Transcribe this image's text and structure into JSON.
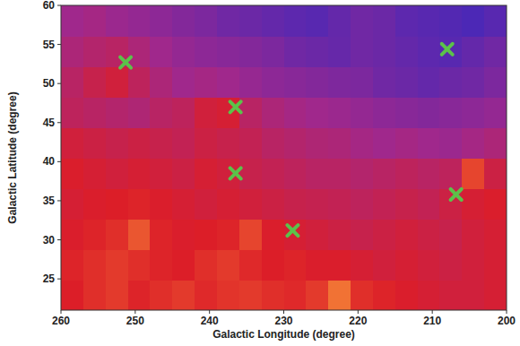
{
  "chart_data": {
    "type": "heatmap",
    "x_label": "Galactic Longitude (degree)",
    "y_label": "Galactic Latitude (degree)",
    "xlim": [
      260,
      200
    ],
    "ylim": [
      21,
      60
    ],
    "xticks": [
      260,
      250,
      240,
      230,
      220,
      210,
      200
    ],
    "yticks": [
      25,
      30,
      35,
      40,
      45,
      50,
      55,
      60
    ],
    "zlim": [
      0,
      1
    ],
    "x": [
      258.5,
      255.5,
      252.5,
      249.5,
      246.5,
      243.5,
      240.5,
      237.5,
      234.5,
      231.5,
      228.5,
      225.5,
      222.5,
      219.5,
      216.5,
      213.5,
      210.5,
      207.5,
      204.5,
      201.5
    ],
    "y": [
      22.95,
      26.85,
      30.75,
      34.65,
      38.55,
      42.45,
      46.35,
      50.25,
      54.15,
      58.05
    ],
    "cells": [
      [
        0.75,
        0.78,
        0.8,
        0.76,
        0.78,
        0.8,
        0.77,
        0.79,
        0.8,
        0.78,
        0.77,
        0.8,
        0.9,
        0.78,
        0.76,
        0.74,
        0.72,
        0.7,
        0.7,
        0.72
      ],
      [
        0.76,
        0.78,
        0.8,
        0.78,
        0.76,
        0.75,
        0.78,
        0.8,
        0.77,
        0.75,
        0.76,
        0.74,
        0.74,
        0.72,
        0.7,
        0.72,
        0.7,
        0.68,
        0.7,
        0.72
      ],
      [
        0.74,
        0.76,
        0.78,
        0.85,
        0.76,
        0.74,
        0.75,
        0.76,
        0.82,
        0.74,
        0.72,
        0.7,
        0.68,
        0.66,
        0.68,
        0.7,
        0.68,
        0.66,
        0.7,
        0.72
      ],
      [
        0.72,
        0.74,
        0.75,
        0.76,
        0.74,
        0.72,
        0.7,
        0.72,
        0.7,
        0.68,
        0.66,
        0.65,
        0.64,
        0.62,
        0.64,
        0.66,
        0.64,
        0.68,
        0.72,
        0.74
      ],
      [
        0.74,
        0.72,
        0.7,
        0.72,
        0.7,
        0.68,
        0.72,
        0.7,
        0.66,
        0.64,
        0.62,
        0.6,
        0.6,
        0.58,
        0.6,
        0.62,
        0.6,
        0.62,
        0.82,
        0.68
      ],
      [
        0.7,
        0.68,
        0.66,
        0.68,
        0.66,
        0.64,
        0.68,
        0.66,
        0.64,
        0.6,
        0.58,
        0.56,
        0.55,
        0.52,
        0.5,
        0.52,
        0.5,
        0.48,
        0.52,
        0.55
      ],
      [
        0.62,
        0.6,
        0.58,
        0.56,
        0.6,
        0.62,
        0.7,
        0.72,
        0.6,
        0.55,
        0.52,
        0.5,
        0.48,
        0.45,
        0.42,
        0.4,
        0.38,
        0.4,
        0.42,
        0.45
      ],
      [
        0.6,
        0.66,
        0.7,
        0.62,
        0.55,
        0.5,
        0.52,
        0.5,
        0.46,
        0.42,
        0.4,
        0.38,
        0.36,
        0.35,
        0.3,
        0.28,
        0.25,
        0.28,
        0.3,
        0.35
      ],
      [
        0.55,
        0.58,
        0.6,
        0.55,
        0.5,
        0.45,
        0.42,
        0.4,
        0.38,
        0.35,
        0.3,
        0.28,
        0.26,
        0.3,
        0.28,
        0.25,
        0.22,
        0.2,
        0.25,
        0.3
      ],
      [
        0.5,
        0.52,
        0.48,
        0.45,
        0.42,
        0.38,
        0.35,
        0.3,
        0.28,
        0.25,
        0.22,
        0.2,
        0.25,
        0.3,
        0.28,
        0.22,
        0.2,
        0.18,
        0.15,
        0.2
      ]
    ],
    "markers": {
      "x": [
        251.3,
        236.5,
        236.5,
        228.8,
        208.0,
        206.8
      ],
      "y": [
        52.7,
        47.0,
        38.5,
        31.2,
        54.4,
        35.8
      ],
      "color": "#5cc24a",
      "marker": "x"
    }
  }
}
